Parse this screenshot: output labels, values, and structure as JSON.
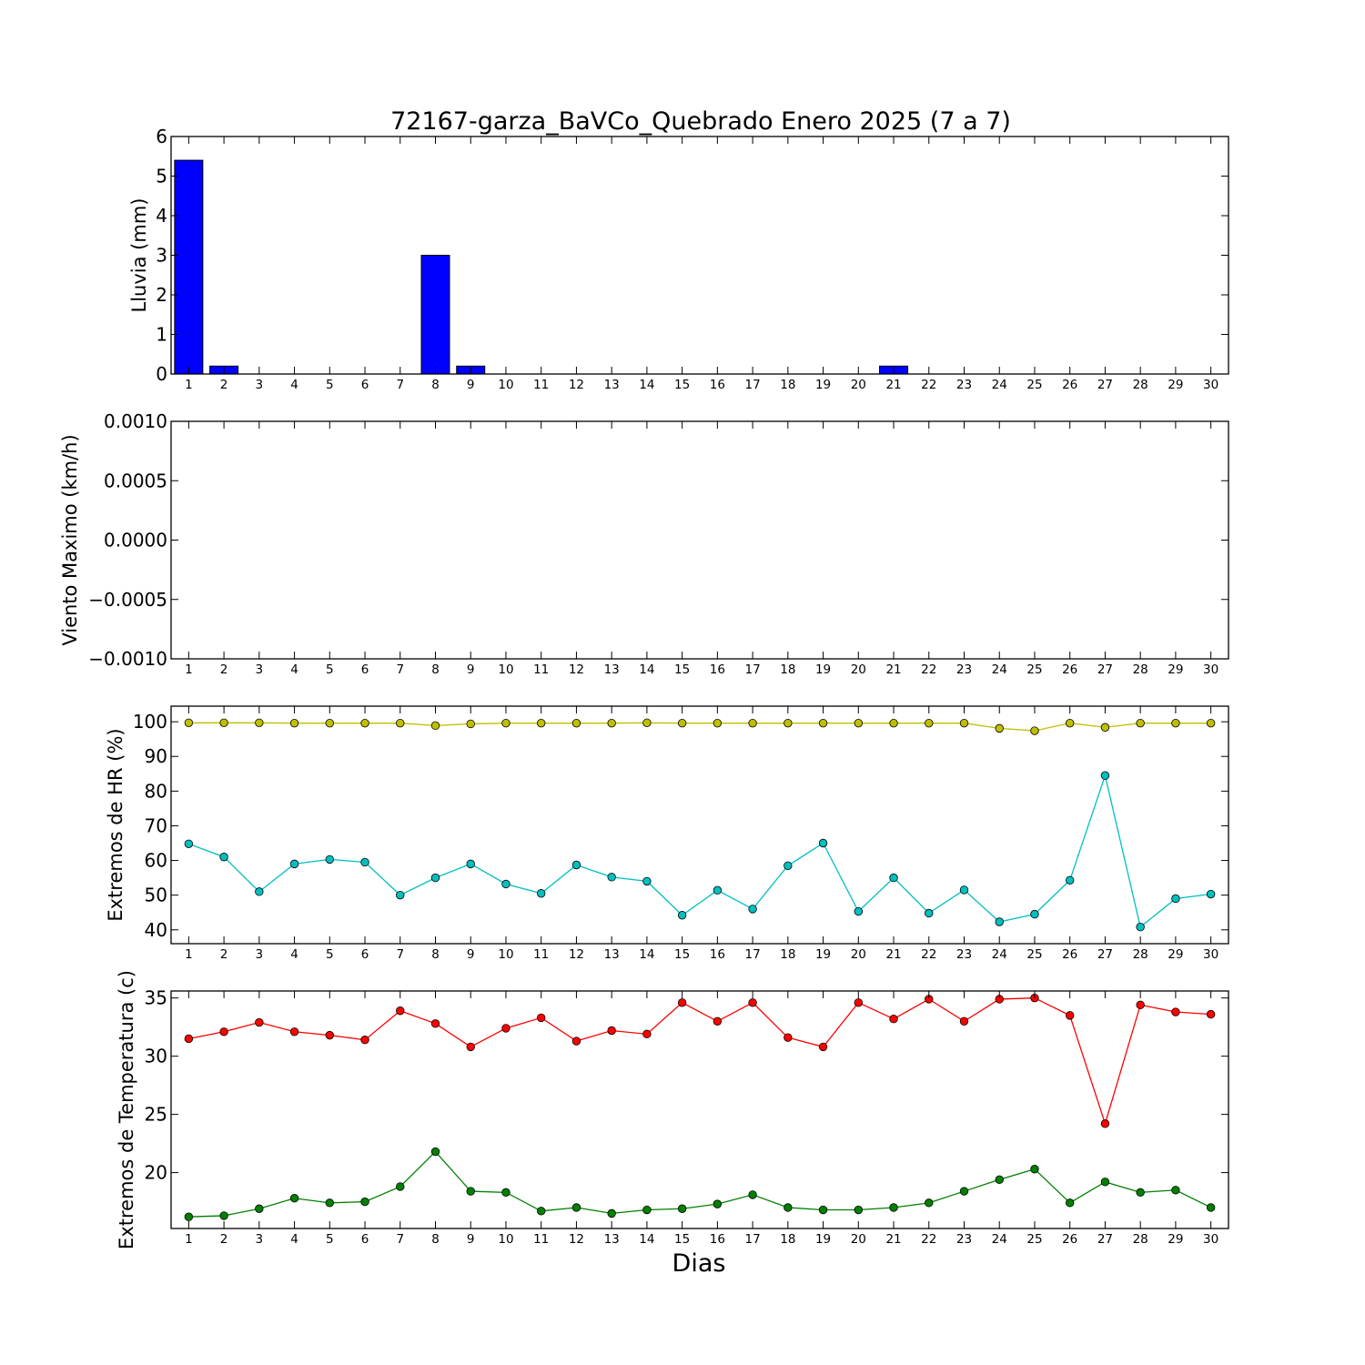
{
  "figure": {
    "title": "72167-garza_BaVCo_Quebrado Enero 2025  (7 a 7)",
    "xlabel": "Dias"
  },
  "chart_data": [
    {
      "id": "rain",
      "type": "bar",
      "ylabel": "Lluvia (mm)",
      "ylim": [
        0,
        6
      ],
      "yticks": [
        0,
        1,
        2,
        3,
        4,
        5,
        6
      ],
      "ytick_labels": [
        "0",
        "1",
        "2",
        "3",
        "4",
        "5",
        "6"
      ],
      "xticks": [
        1,
        2,
        3,
        4,
        5,
        6,
        7,
        8,
        9,
        10,
        11,
        12,
        13,
        14,
        15,
        16,
        17,
        18,
        19,
        20,
        21,
        22,
        23,
        24,
        25,
        26,
        27,
        28,
        29,
        30
      ],
      "series": [
        {
          "color": "#0000ff",
          "x": [
            1,
            2,
            3,
            4,
            5,
            6,
            7,
            8,
            9,
            10,
            11,
            12,
            13,
            14,
            15,
            16,
            17,
            18,
            19,
            20,
            21,
            22,
            23,
            24,
            25,
            26,
            27,
            28,
            29,
            30
          ],
          "values": [
            5.4,
            0.2,
            0,
            0,
            0,
            0,
            0,
            3.0,
            0.2,
            0,
            0,
            0,
            0,
            0,
            0,
            0,
            0,
            0,
            0,
            0,
            0.2,
            0,
            0,
            0,
            0,
            0,
            0,
            0,
            0,
            0
          ]
        }
      ]
    },
    {
      "id": "wind",
      "type": "line",
      "ylabel": "Viento Maximo (km/h)",
      "ylim": [
        -0.001,
        0.001
      ],
      "yticks": [
        -0.001,
        -0.0005,
        0,
        0.0005,
        0.001
      ],
      "ytick_labels": [
        "−0.0010",
        "−0.0005",
        "0.0000",
        "0.0005",
        "0.0010"
      ],
      "xticks": [
        1,
        2,
        3,
        4,
        5,
        6,
        7,
        8,
        9,
        10,
        11,
        12,
        13,
        14,
        15,
        16,
        17,
        18,
        19,
        20,
        21,
        22,
        23,
        24,
        25,
        26,
        27,
        28,
        29,
        30
      ],
      "series": []
    },
    {
      "id": "humidity",
      "type": "line",
      "ylabel": "Extremos de HR (%)",
      "ylim": [
        36,
        104.5
      ],
      "yticks": [
        40,
        50,
        60,
        70,
        80,
        90,
        100
      ],
      "ytick_labels": [
        "40",
        "50",
        "60",
        "70",
        "80",
        "90",
        "100"
      ],
      "xticks": [
        1,
        2,
        3,
        4,
        5,
        6,
        7,
        8,
        9,
        10,
        11,
        12,
        13,
        14,
        15,
        16,
        17,
        18,
        19,
        20,
        21,
        22,
        23,
        24,
        25,
        26,
        27,
        28,
        29,
        30
      ],
      "series": [
        {
          "color": "#bfbf00",
          "x": [
            1,
            2,
            3,
            4,
            5,
            6,
            7,
            8,
            9,
            10,
            11,
            12,
            13,
            14,
            15,
            16,
            17,
            18,
            19,
            20,
            21,
            22,
            23,
            24,
            25,
            26,
            27,
            28,
            29,
            30
          ],
          "values": [
            99.7,
            99.7,
            99.7,
            99.6,
            99.6,
            99.6,
            99.6,
            98.9,
            99.4,
            99.6,
            99.6,
            99.6,
            99.6,
            99.7,
            99.6,
            99.6,
            99.6,
            99.6,
            99.6,
            99.6,
            99.6,
            99.6,
            99.6,
            98.1,
            97.4,
            99.6,
            98.4,
            99.6,
            99.6,
            99.6
          ]
        },
        {
          "color": "#00bfbf",
          "x": [
            1,
            2,
            3,
            4,
            5,
            6,
            7,
            8,
            9,
            10,
            11,
            12,
            13,
            14,
            15,
            16,
            17,
            18,
            19,
            20,
            21,
            22,
            23,
            24,
            25,
            26,
            27,
            28,
            29,
            30
          ],
          "values": [
            64.8,
            61.0,
            51.0,
            59.0,
            60.3,
            59.5,
            50.0,
            55.0,
            59.0,
            53.2,
            50.5,
            58.7,
            55.2,
            54.0,
            44.2,
            51.4,
            46.0,
            58.5,
            65.0,
            45.3,
            55.0,
            44.8,
            51.5,
            42.3,
            44.5,
            54.3,
            84.5,
            40.8,
            49.0,
            50.3
          ]
        }
      ]
    },
    {
      "id": "temperature",
      "type": "line",
      "ylabel": "Extremos de Temperatura (c)",
      "ylim": [
        15.2,
        35.6
      ],
      "yticks": [
        20,
        25,
        30,
        35
      ],
      "ytick_labels": [
        "20",
        "25",
        "30",
        "35"
      ],
      "xticks": [
        1,
        2,
        3,
        4,
        5,
        6,
        7,
        8,
        9,
        10,
        11,
        12,
        13,
        14,
        15,
        16,
        17,
        18,
        19,
        20,
        21,
        22,
        23,
        24,
        25,
        26,
        27,
        28,
        29,
        30
      ],
      "series": [
        {
          "color": "#ff0000",
          "x": [
            1,
            2,
            3,
            4,
            5,
            6,
            7,
            8,
            9,
            10,
            11,
            12,
            13,
            14,
            15,
            16,
            17,
            18,
            19,
            20,
            21,
            22,
            23,
            24,
            25,
            26,
            27,
            28,
            29,
            30
          ],
          "values": [
            31.5,
            32.1,
            32.9,
            32.1,
            31.8,
            31.4,
            33.9,
            32.8,
            30.8,
            32.4,
            33.3,
            31.3,
            32.2,
            31.9,
            34.6,
            33.0,
            34.6,
            31.6,
            30.8,
            34.6,
            33.2,
            34.9,
            33.0,
            34.9,
            35.0,
            33.5,
            24.2,
            34.4,
            33.8,
            33.6
          ]
        },
        {
          "color": "#008000",
          "x": [
            1,
            2,
            3,
            4,
            5,
            6,
            7,
            8,
            9,
            10,
            11,
            12,
            13,
            14,
            15,
            16,
            17,
            18,
            19,
            20,
            21,
            22,
            23,
            24,
            25,
            26,
            27,
            28,
            29,
            30
          ],
          "values": [
            16.2,
            16.3,
            16.9,
            17.8,
            17.4,
            17.5,
            18.8,
            21.8,
            18.4,
            18.3,
            16.7,
            17.0,
            16.5,
            16.8,
            16.9,
            17.3,
            18.1,
            17.0,
            16.8,
            16.8,
            17.0,
            17.4,
            18.4,
            19.4,
            20.3,
            17.4,
            19.2,
            18.3,
            18.5,
            17.0
          ]
        }
      ]
    }
  ]
}
